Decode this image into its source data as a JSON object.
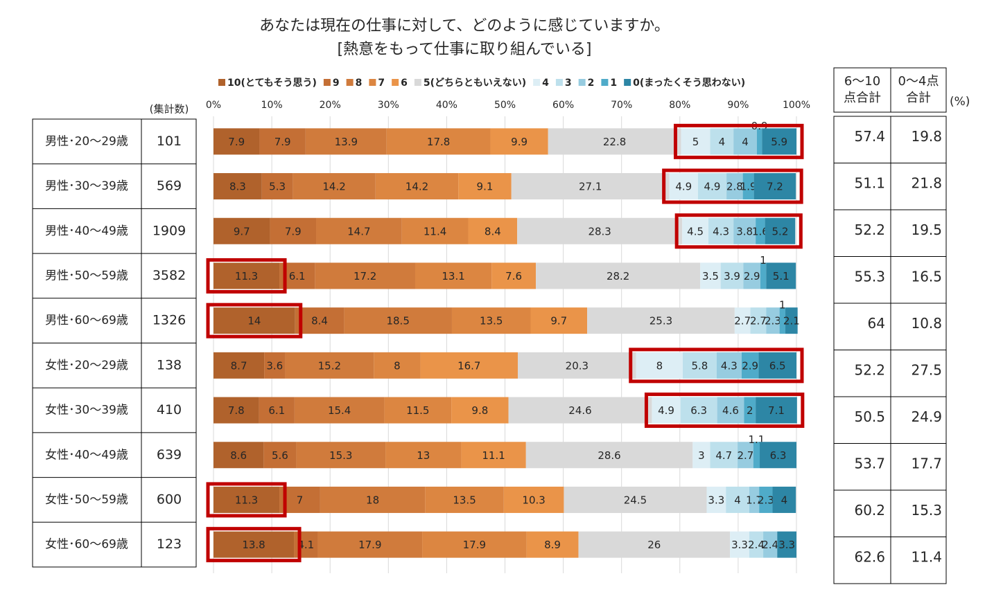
{
  "chart_data": {
    "type": "stacked-bar-horizontal",
    "title": "あなたは現在の仕事に対して、どのように感じていますか。",
    "subtitle": "[熱意をもって仕事に取り組んでいる]",
    "count_header": "(集計数)",
    "categories": [
      "男性･20～29歳",
      "男性･30～39歳",
      "男性･40～49歳",
      "男性･50～59歳",
      "男性･60～69歳",
      "女性･20～29歳",
      "女性･30～39歳",
      "女性･40～49歳",
      "女性･50～59歳",
      "女性･60～69歳"
    ],
    "counts": [
      101,
      569,
      1909,
      3582,
      1326,
      138,
      410,
      639,
      600,
      123
    ],
    "xlim": [
      0,
      100
    ],
    "xticks": [
      {
        "value": 0,
        "label": "0%"
      },
      {
        "value": 10,
        "label": "10%"
      },
      {
        "value": 20,
        "label": "20%"
      },
      {
        "value": 30,
        "label": "30%"
      },
      {
        "value": 40,
        "label": "40%"
      },
      {
        "value": 50,
        "label": "50%"
      },
      {
        "value": 60,
        "label": "60%"
      },
      {
        "value": 70,
        "label": "70%"
      },
      {
        "value": 80,
        "label": "80%"
      },
      {
        "value": 90,
        "label": "90%"
      },
      {
        "value": 100,
        "label": "100%"
      }
    ],
    "grid": true,
    "series": [
      {
        "name": "10(とてもそう思う)",
        "color": "#b0622c",
        "values": [
          7.9,
          8.3,
          9.7,
          11.3,
          14.0,
          8.7,
          7.8,
          8.6,
          11.3,
          13.8
        ]
      },
      {
        "name": "9",
        "color": "#c46f35",
        "values": [
          7.9,
          5.3,
          7.9,
          6.1,
          8.4,
          3.6,
          6.1,
          5.6,
          7.0,
          4.1
        ]
      },
      {
        "name": "8",
        "color": "#d07b3c",
        "values": [
          13.9,
          14.2,
          14.7,
          17.2,
          18.5,
          15.2,
          15.4,
          15.3,
          18.0,
          17.9
        ]
      },
      {
        "name": "7",
        "color": "#dc8641",
        "values": [
          17.8,
          14.2,
          11.4,
          13.1,
          13.5,
          8.0,
          11.5,
          13.0,
          13.5,
          17.9
        ]
      },
      {
        "name": "6",
        "color": "#ea9449",
        "values": [
          9.9,
          9.1,
          8.4,
          7.6,
          9.7,
          16.7,
          9.8,
          11.1,
          10.3,
          8.9
        ]
      },
      {
        "name": "5(どちらともいえない)",
        "color": "#d9d9d9",
        "values": [
          22.8,
          27.1,
          28.3,
          28.2,
          25.3,
          20.3,
          24.6,
          28.6,
          24.5,
          26.0
        ]
      },
      {
        "name": "4",
        "color": "#ddeef5",
        "values": [
          5.0,
          4.9,
          4.5,
          3.5,
          2.7,
          8.0,
          4.9,
          3.0,
          3.3,
          3.3
        ]
      },
      {
        "name": "3",
        "color": "#bde0ec",
        "values": [
          4.0,
          4.9,
          4.3,
          3.9,
          2.7,
          5.8,
          6.3,
          4.7,
          4.0,
          2.4
        ]
      },
      {
        "name": "2",
        "color": "#97cce0",
        "values": [
          4.0,
          2.8,
          3.8,
          2.9,
          2.3,
          4.3,
          4.6,
          2.7,
          1.7,
          2.4
        ]
      },
      {
        "name": "1",
        "color": "#4fabc9",
        "values": [
          0.9,
          1.9,
          1.6,
          1.0,
          1.0,
          2.9,
          2.0,
          1.1,
          2.3,
          0
        ]
      },
      {
        "name": "0(まったくそう思わない)",
        "color": "#2d86a5",
        "values": [
          5.9,
          7.2,
          5.2,
          5.1,
          2.1,
          6.5,
          7.1,
          6.3,
          4.0,
          3.3
        ]
      }
    ],
    "highlight_color": "#c00000",
    "highlight_series": [
      [
        6,
        10
      ],
      [
        6,
        10
      ],
      [
        6,
        10
      ],
      [
        0,
        0
      ],
      [
        0,
        0
      ],
      [
        6,
        10
      ],
      [
        6,
        10
      ],
      null,
      [
        0,
        0
      ],
      [
        0,
        0
      ]
    ],
    "side_table": {
      "unit": "(%)",
      "columns": [
        {
          "header": [
            "6～10",
            "点合計"
          ],
          "values": [
            57.4,
            51.1,
            52.2,
            55.3,
            64.0,
            52.2,
            50.5,
            53.7,
            60.2,
            62.6
          ]
        },
        {
          "header": [
            "0～4点",
            "合計"
          ],
          "values": [
            19.8,
            21.8,
            19.5,
            16.5,
            10.8,
            27.5,
            24.9,
            17.7,
            15.3,
            11.4
          ]
        }
      ]
    }
  }
}
